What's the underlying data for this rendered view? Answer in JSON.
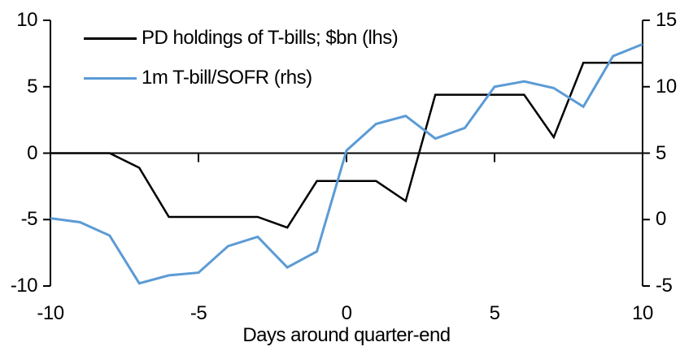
{
  "chart_data": {
    "type": "line",
    "title": "",
    "xlabel": "Days around quarter-end",
    "x": [
      -10,
      -9,
      -8,
      -7,
      -6,
      -5,
      -4,
      -3,
      -2,
      -1,
      0,
      1,
      2,
      3,
      4,
      5,
      6,
      7,
      8,
      9,
      10
    ],
    "series": [
      {
        "name": "PD holdings of T-bills; $bn (lhs)",
        "axis": "left",
        "color": "#000000",
        "values": [
          0,
          0,
          0,
          -1.1,
          -4.8,
          -4.8,
          -4.8,
          -4.8,
          -5.6,
          -2.1,
          -2.1,
          -2.1,
          -3.6,
          4.4,
          4.4,
          4.4,
          4.4,
          1.2,
          6.8,
          6.8,
          6.8
        ]
      },
      {
        "name": "1m T-bill/SOFR (rhs)",
        "axis": "right",
        "color": "#5B9BD5",
        "values": [
          0.1,
          -0.2,
          -1.2,
          -4.8,
          -4.2,
          -4.0,
          -2.0,
          -1.3,
          -3.6,
          -2.4,
          5.2,
          7.2,
          7.8,
          6.1,
          6.9,
          10.0,
          10.4,
          9.9,
          8.5,
          12.3,
          13.2
        ]
      }
    ],
    "y_left": {
      "ticks": [
        10,
        5,
        0,
        -5,
        -10
      ],
      "range": [
        -10,
        10
      ]
    },
    "y_right": {
      "ticks": [
        15,
        10,
        5,
        0,
        -5
      ],
      "range": [
        -5,
        15
      ]
    },
    "x_tick_labels": [
      -10,
      -5,
      0,
      5,
      10
    ],
    "x_tick_marks": [
      -5,
      0,
      5
    ],
    "grid": false,
    "legend_position": "top-left",
    "axis_color": "#000000",
    "background": "#ffffff"
  }
}
